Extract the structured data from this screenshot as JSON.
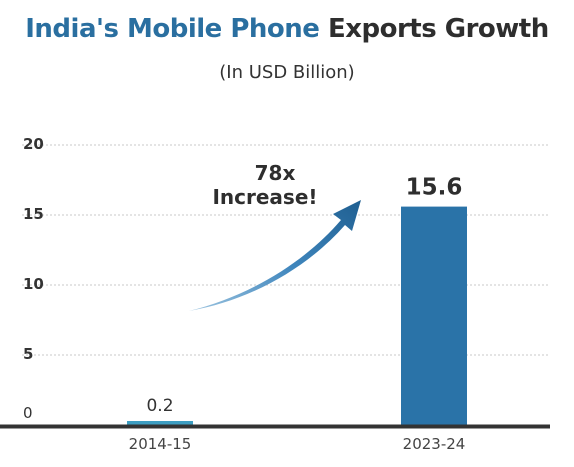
{
  "title": {
    "part1": "India's Mobile Phone",
    "part2": "Exports Growth"
  },
  "subtitle": "(In USD Billion)",
  "annotation": {
    "line1": "78x",
    "line2": "Increase!"
  },
  "colors": {
    "title_accent": "#2a6fa0",
    "bar": "#2a73a8",
    "bar_small": "#3d9ec2",
    "grid": "#c8c8c8",
    "axis": "#333333",
    "arrow": "#2a6fa0"
  },
  "chart_data": {
    "type": "bar",
    "categories": [
      "2014-15",
      "2023-24"
    ],
    "values": [
      0.2,
      15.6
    ],
    "value_labels": [
      "0.2",
      "15.6"
    ],
    "title": "India's Mobile Phone Exports Growth",
    "subtitle": "(In USD Billion)",
    "xlabel": "",
    "ylabel": "",
    "ylim": [
      0,
      20
    ],
    "yticks": [
      0,
      5,
      10,
      15,
      20
    ],
    "grid": "horizontal dashed",
    "legend": "none",
    "annotation": "78x Increase!"
  }
}
